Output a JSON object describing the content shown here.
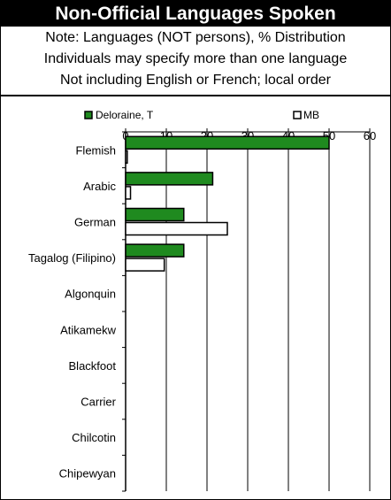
{
  "header": {
    "title": "Non-Official Languages Spoken",
    "notes": [
      "Note: Languages (NOT persons), % Distribution",
      "Individuals may specify more than one language",
      "Not including English or French; local order"
    ]
  },
  "colors": {
    "series1": "#1f8a1f",
    "series2": "#ffffff",
    "stroke": "#000000"
  },
  "chart_data": {
    "type": "bar",
    "orientation": "horizontal",
    "categories": [
      "Flemish",
      "Arabic",
      "German",
      "Tagalog (Filipino)",
      "Algonquin",
      "Atikamekw",
      "Blackfoot",
      "Carrier",
      "Chilcotin",
      "Chipewyan"
    ],
    "series": [
      {
        "name": "Deloraine, T",
        "values": [
          50.0,
          21.4,
          14.3,
          14.3,
          0,
          0,
          0,
          0,
          0,
          0
        ]
      },
      {
        "name": "MB",
        "values": [
          0.4,
          1.2,
          25.0,
          9.5,
          0,
          0,
          0,
          0,
          0,
          0
        ]
      }
    ],
    "xlim": [
      0,
      60
    ],
    "xticks": [
      0,
      10,
      20,
      30,
      40,
      50,
      60
    ],
    "grid": true,
    "legend_position": "top"
  }
}
